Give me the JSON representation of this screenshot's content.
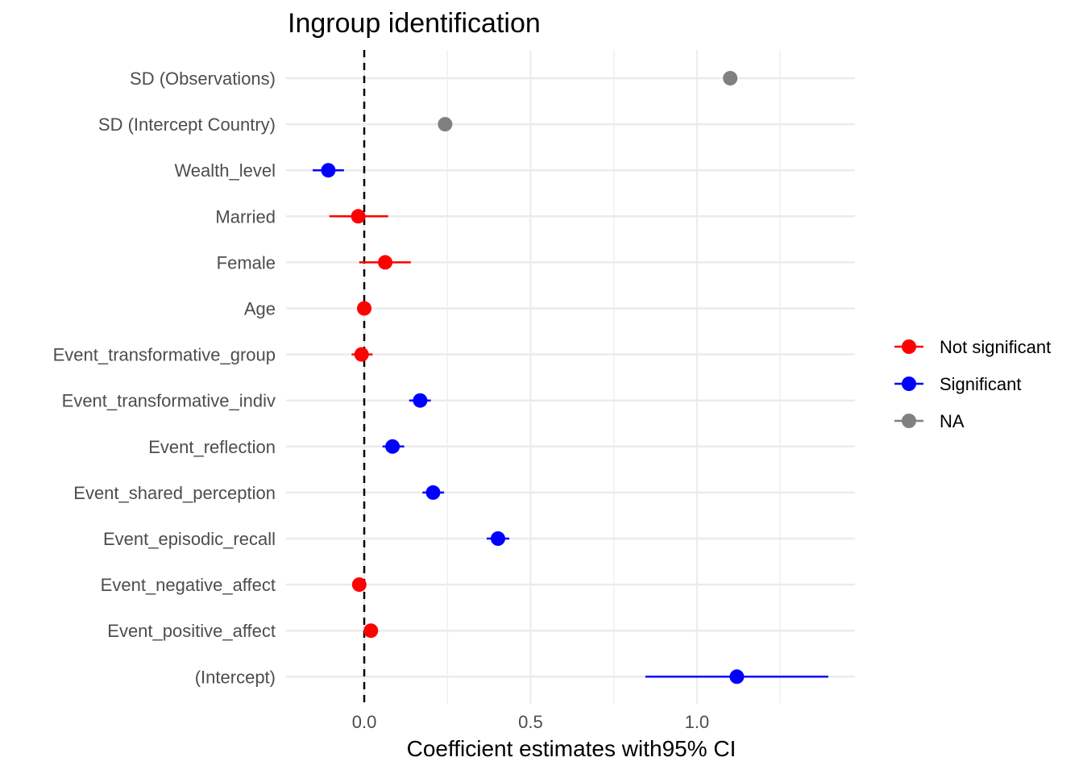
{
  "chart_data": {
    "type": "scatter",
    "title": "Ingroup identification",
    "xlabel": "Coefficient estimates with95% CI",
    "ylabel": "",
    "xlim": [
      -0.235,
      1.475
    ],
    "xticks": [
      0.0,
      0.5,
      1.0
    ],
    "xtick_labels": [
      "0.0",
      "0.5",
      "1.0"
    ],
    "reference_line": 0,
    "grid": true,
    "legend_position": "right",
    "legend": [
      {
        "label": "Not significant",
        "color": "#ff0000"
      },
      {
        "label": "Significant",
        "color": "#0000ff"
      },
      {
        "label": "NA",
        "color": "#808080"
      }
    ],
    "terms": [
      {
        "label": "SD (Observations)",
        "estimate": 1.1,
        "low": null,
        "high": null,
        "group": "NA"
      },
      {
        "label": "SD (Intercept Country)",
        "estimate": 0.243,
        "low": null,
        "high": null,
        "group": "NA"
      },
      {
        "label": "Wealth_level",
        "estimate": -0.108,
        "low": -0.155,
        "high": -0.061,
        "group": "Significant"
      },
      {
        "label": "Married",
        "estimate": -0.018,
        "low": -0.105,
        "high": 0.072,
        "group": "Not significant"
      },
      {
        "label": "Female",
        "estimate": 0.063,
        "low": -0.015,
        "high": 0.14,
        "group": "Not significant"
      },
      {
        "label": "Age",
        "estimate": 0.0,
        "low": -0.008,
        "high": 0.008,
        "group": "Not significant"
      },
      {
        "label": "Event_transformative_group",
        "estimate": -0.008,
        "low": -0.038,
        "high": 0.025,
        "group": "Not significant"
      },
      {
        "label": "Event_transformative_indiv",
        "estimate": 0.168,
        "low": 0.135,
        "high": 0.2,
        "group": "Significant"
      },
      {
        "label": "Event_reflection",
        "estimate": 0.085,
        "low": 0.055,
        "high": 0.12,
        "group": "Significant"
      },
      {
        "label": "Event_shared_perception",
        "estimate": 0.207,
        "low": 0.175,
        "high": 0.24,
        "group": "Significant"
      },
      {
        "label": "Event_episodic_recall",
        "estimate": 0.402,
        "low": 0.368,
        "high": 0.436,
        "group": "Significant"
      },
      {
        "label": "Event_negative_affect",
        "estimate": -0.015,
        "low": -0.03,
        "high": 0.0,
        "group": "Not significant"
      },
      {
        "label": "Event_positive_affect",
        "estimate": 0.02,
        "low": 0.005,
        "high": 0.035,
        "group": "Not significant"
      },
      {
        "label": "(Intercept)",
        "estimate": 1.12,
        "low": 0.845,
        "high": 1.395,
        "group": "Significant"
      }
    ]
  }
}
